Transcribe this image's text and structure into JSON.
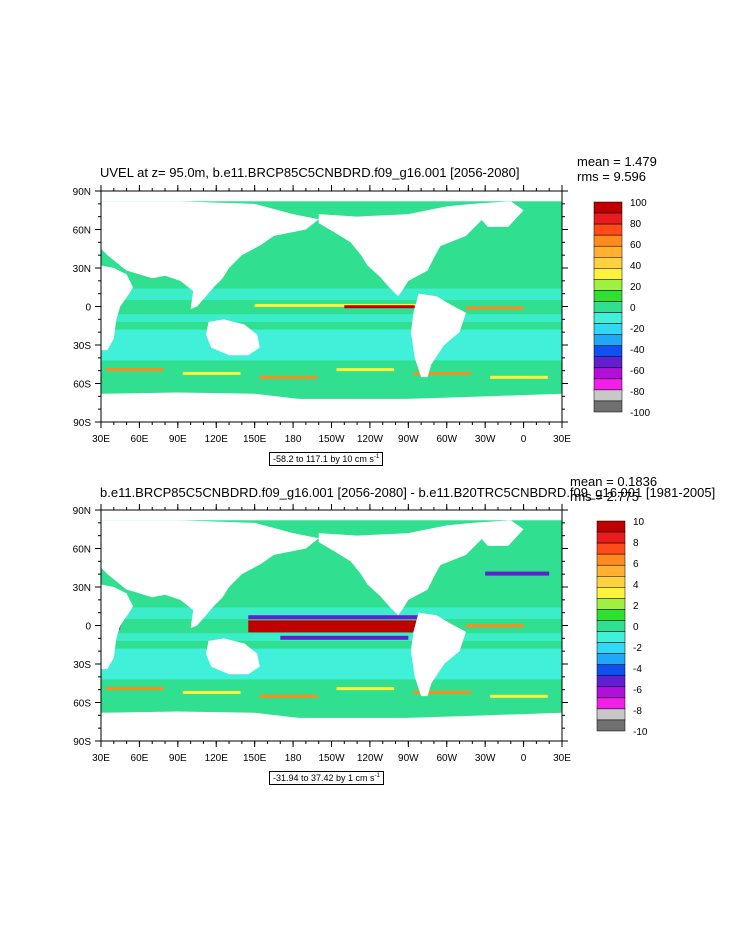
{
  "panels": [
    {
      "title": "UVEL at z=  95.0m, b.e11.BRCP85C5CNBDRD.f09_g16.001 [2056-2080]",
      "mean": "mean = 1.479",
      "rms": "rms = 9.596",
      "range_text": "-58.2 to 117.1 by 10 cm s",
      "range_unit_sup": "-1",
      "colorbar_labels": [
        "100",
        "80",
        "60",
        "40",
        "20",
        "0",
        "-20",
        "-40",
        "-60",
        "-80",
        "-100"
      ]
    },
    {
      "title": "b.e11.BRCP85C5CNBDRD.f09_g16.001 [2056-2080] - b.e11.B20TRC5CNBDRD.f09_g16.001 [1981-2005]",
      "mean": "mean = 0.1836",
      "rms": "rms = 2.775",
      "range_text": "-31.94 to 37.42 by 1 cm s",
      "range_unit_sup": "-1",
      "colorbar_labels": [
        "10",
        "8",
        "6",
        "4",
        "2",
        "0",
        "-2",
        "-4",
        "-6",
        "-8",
        "-10"
      ]
    }
  ],
  "lat_labels": [
    "90N",
    "60N",
    "30N",
    "0",
    "30S",
    "60S",
    "90S"
  ],
  "lon_labels": [
    "30E",
    "60E",
    "90E",
    "120E",
    "150E",
    "180",
    "150W",
    "120W",
    "90W",
    "60W",
    "30W",
    "0",
    "30E"
  ],
  "colorbar_colors": [
    "#c00000",
    "#e81c1c",
    "#ff4a1a",
    "#ff8a1e",
    "#ffb030",
    "#ffd040",
    "#fff23a",
    "#a0f040",
    "#30e030",
    "#30e090",
    "#40f0d8",
    "#30d8f8",
    "#20a8f8",
    "#1050f0",
    "#6020d0",
    "#b010d8",
    "#f020e8",
    "#c8c8c8",
    "#707070"
  ],
  "map_colors": {
    "background_flow": "#30e090",
    "southern_band": "#40f0d8",
    "jet_positive": "#c00000",
    "jet_warm": "#ff8a1e",
    "jet_yellow": "#fff23a",
    "jet_negative": "#6020d0",
    "land": "#ffffff"
  }
}
